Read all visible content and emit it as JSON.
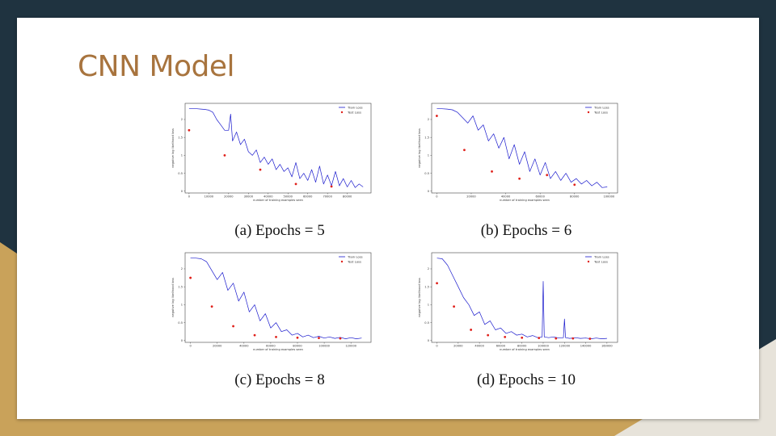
{
  "slide": {
    "title": "CNN Model"
  },
  "colors": {
    "background": "#1f3340",
    "accent_gold": "#c9a25a",
    "title": "#a8743e",
    "train_line": "#1a1acd",
    "test_point": "#e0201a"
  },
  "chart_data": [
    {
      "type": "line",
      "caption": "(a) Epochs = 5",
      "xlabel": "number of training examples seen",
      "ylabel": "negative log likelihood loss",
      "xlim": [
        -2000,
        92000
      ],
      "ylim": [
        -0.05,
        2.45
      ],
      "xticks": [
        0,
        10000,
        20000,
        30000,
        40000,
        50000,
        60000,
        70000,
        80000
      ],
      "yticks": [
        0.0,
        0.5,
        1.0,
        1.5,
        2.0
      ],
      "legend": [
        "Train Loss",
        "Test Loss"
      ],
      "legend_position": "top-right",
      "series": [
        {
          "name": "Train Loss",
          "x": [
            0,
            2000,
            4000,
            6000,
            8000,
            10000,
            12000,
            14000,
            16000,
            18000,
            20000,
            21000,
            22000,
            24000,
            26000,
            28000,
            30000,
            32000,
            34000,
            36000,
            38000,
            40000,
            42000,
            44000,
            46000,
            48000,
            50000,
            52000,
            54000,
            56000,
            58000,
            60000,
            62000,
            64000,
            66000,
            68000,
            70000,
            72000,
            74000,
            76000,
            78000,
            80000,
            82000,
            84000,
            86000,
            88000
          ],
          "y": [
            2.3,
            2.3,
            2.3,
            2.29,
            2.28,
            2.26,
            2.2,
            2.0,
            1.85,
            1.7,
            1.7,
            2.15,
            1.4,
            1.65,
            1.3,
            1.45,
            1.1,
            1.0,
            1.15,
            0.8,
            0.95,
            0.75,
            0.9,
            0.6,
            0.75,
            0.55,
            0.65,
            0.4,
            0.8,
            0.35,
            0.5,
            0.3,
            0.6,
            0.25,
            0.7,
            0.2,
            0.45,
            0.15,
            0.55,
            0.15,
            0.35,
            0.12,
            0.3,
            0.1,
            0.2,
            0.12
          ]
        },
        {
          "name": "Test Loss",
          "x": [
            0,
            18000,
            36000,
            54000,
            72000
          ],
          "y": [
            1.7,
            1.0,
            0.6,
            0.2,
            0.13
          ]
        }
      ]
    },
    {
      "type": "line",
      "caption": "(b) Epochs = 6",
      "xlabel": "number of training examples seen",
      "ylabel": "negative log likelihood loss",
      "xlim": [
        -3000,
        105000
      ],
      "ylim": [
        -0.05,
        2.45
      ],
      "xticks": [
        0,
        20000,
        40000,
        60000,
        80000,
        100000
      ],
      "yticks": [
        0.0,
        0.5,
        1.0,
        1.5,
        2.0
      ],
      "legend": [
        "Train Loss",
        "Test Loss"
      ],
      "legend_position": "top-right",
      "series": [
        {
          "name": "Train Loss",
          "x": [
            0,
            3000,
            6000,
            9000,
            12000,
            15000,
            18000,
            21000,
            24000,
            27000,
            30000,
            33000,
            36000,
            39000,
            42000,
            45000,
            48000,
            51000,
            54000,
            57000,
            60000,
            63000,
            66000,
            69000,
            72000,
            75000,
            78000,
            81000,
            84000,
            87000,
            90000,
            93000,
            96000,
            99000
          ],
          "y": [
            2.3,
            2.3,
            2.29,
            2.27,
            2.2,
            2.05,
            1.9,
            2.1,
            1.7,
            1.85,
            1.4,
            1.6,
            1.2,
            1.5,
            0.9,
            1.3,
            0.75,
            1.1,
            0.55,
            0.9,
            0.45,
            0.8,
            0.35,
            0.55,
            0.3,
            0.5,
            0.25,
            0.35,
            0.2,
            0.3,
            0.15,
            0.25,
            0.1,
            0.12
          ]
        },
        {
          "name": "Test Loss",
          "x": [
            0,
            16000,
            32000,
            48000,
            64000,
            80000
          ],
          "y": [
            2.1,
            1.15,
            0.55,
            0.35,
            0.45,
            0.18
          ]
        }
      ]
    },
    {
      "type": "line",
      "caption": "(c) Epochs = 8",
      "xlabel": "number of training examples seen",
      "ylabel": "negative log likelihood loss",
      "xlim": [
        -4000,
        135000
      ],
      "ylim": [
        -0.05,
        2.45
      ],
      "xticks": [
        0,
        20000,
        40000,
        60000,
        80000,
        100000,
        120000
      ],
      "yticks": [
        0.0,
        0.5,
        1.0,
        1.5,
        2.0
      ],
      "legend": [
        "Train Loss",
        "Test Loss"
      ],
      "legend_position": "top-right",
      "series": [
        {
          "name": "Train Loss",
          "x": [
            0,
            4000,
            8000,
            12000,
            16000,
            20000,
            24000,
            28000,
            32000,
            36000,
            40000,
            44000,
            48000,
            52000,
            56000,
            60000,
            64000,
            68000,
            72000,
            76000,
            80000,
            84000,
            88000,
            92000,
            96000,
            100000,
            104000,
            108000,
            112000,
            116000,
            120000,
            124000,
            128000
          ],
          "y": [
            2.3,
            2.3,
            2.28,
            2.2,
            1.95,
            1.7,
            1.9,
            1.4,
            1.6,
            1.1,
            1.35,
            0.8,
            1.0,
            0.55,
            0.75,
            0.35,
            0.5,
            0.25,
            0.3,
            0.15,
            0.2,
            0.1,
            0.15,
            0.08,
            0.12,
            0.07,
            0.1,
            0.06,
            0.09,
            0.05,
            0.08,
            0.05,
            0.07
          ]
        },
        {
          "name": "Test Loss",
          "x": [
            0,
            16000,
            32000,
            48000,
            64000,
            80000,
            96000,
            112000
          ],
          "y": [
            1.75,
            0.95,
            0.4,
            0.15,
            0.1,
            0.08,
            0.07,
            0.06
          ]
        }
      ]
    },
    {
      "type": "line",
      "caption": "(d) Epochs = 10",
      "xlabel": "number of training examples seen",
      "ylabel": "negative log likelihood loss",
      "xlim": [
        -5000,
        170000
      ],
      "ylim": [
        -0.05,
        2.45
      ],
      "xticks": [
        0,
        20000,
        40000,
        60000,
        80000,
        100000,
        120000,
        140000,
        160000
      ],
      "yticks": [
        0.0,
        0.5,
        1.0,
        1.5,
        2.0
      ],
      "legend": [
        "Train Loss",
        "Test Loss"
      ],
      "legend_position": "top-right",
      "series": [
        {
          "name": "Train Loss",
          "x": [
            0,
            5000,
            10000,
            15000,
            20000,
            25000,
            30000,
            35000,
            40000,
            45000,
            50000,
            55000,
            60000,
            65000,
            70000,
            75000,
            80000,
            85000,
            90000,
            95000,
            99000,
            100000,
            101000,
            105000,
            110000,
            115000,
            119000,
            120000,
            121000,
            125000,
            130000,
            135000,
            140000,
            145000,
            150000,
            155000,
            160000
          ],
          "y": [
            2.3,
            2.28,
            2.1,
            1.8,
            1.5,
            1.2,
            1.0,
            0.7,
            0.8,
            0.45,
            0.55,
            0.3,
            0.35,
            0.2,
            0.25,
            0.15,
            0.18,
            0.1,
            0.14,
            0.08,
            0.1,
            1.65,
            0.1,
            0.08,
            0.1,
            0.07,
            0.08,
            0.6,
            0.08,
            0.06,
            0.08,
            0.06,
            0.07,
            0.05,
            0.07,
            0.05,
            0.06
          ]
        },
        {
          "name": "Test Loss",
          "x": [
            0,
            16000,
            32000,
            48000,
            64000,
            80000,
            96000,
            112000,
            128000,
            144000
          ],
          "y": [
            1.6,
            0.95,
            0.3,
            0.15,
            0.1,
            0.08,
            0.07,
            0.06,
            0.06,
            0.05
          ]
        }
      ]
    }
  ]
}
